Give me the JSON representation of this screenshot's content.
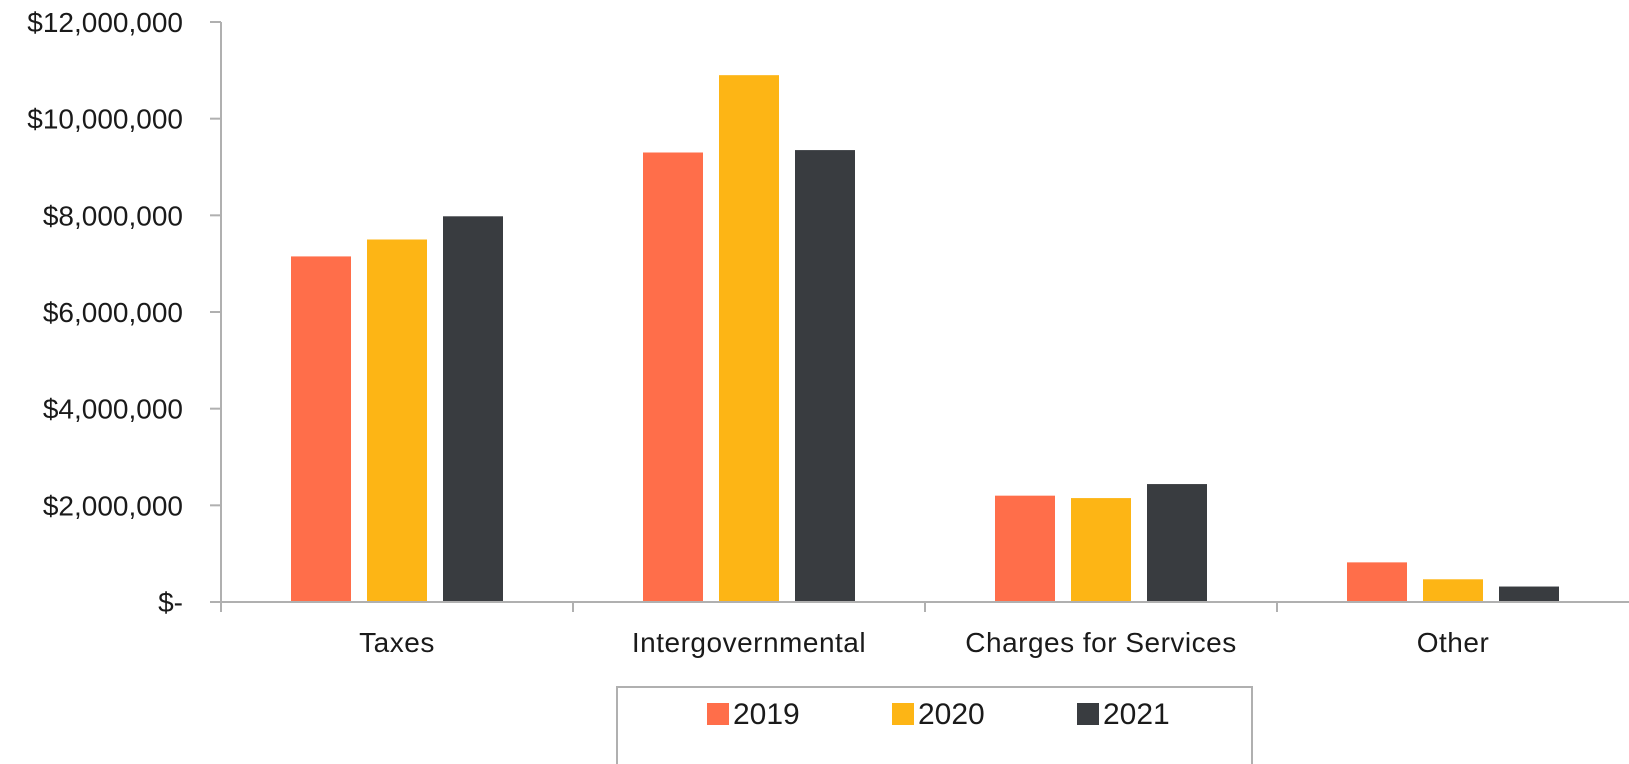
{
  "chart_data": {
    "type": "bar",
    "categories": [
      "Taxes",
      "Intergovernmental",
      "Charges for Services",
      "Other"
    ],
    "series": [
      {
        "name": "2019",
        "values": [
          7150000,
          9300000,
          2200000,
          820000
        ],
        "color": "#ff6e4a"
      },
      {
        "name": "2020",
        "values": [
          7500000,
          10900000,
          2150000,
          470000
        ],
        "color": "#fdb515"
      },
      {
        "name": "2021",
        "values": [
          7980000,
          9350000,
          2440000,
          320000
        ],
        "color": "#393c40"
      }
    ],
    "yticks": [
      {
        "value": 0,
        "label": "$-"
      },
      {
        "value": 2000000,
        "label": "$2,000,000"
      },
      {
        "value": 4000000,
        "label": "$4,000,000"
      },
      {
        "value": 6000000,
        "label": "$6,000,000"
      },
      {
        "value": 8000000,
        "label": "$8,000,000"
      },
      {
        "value": 10000000,
        "label": "$10,000,000"
      },
      {
        "value": 12000000,
        "label": "$12,000,000"
      }
    ],
    "ylim": [
      0,
      12000000
    ],
    "title": "",
    "xlabel": "",
    "ylabel": "",
    "grid": false,
    "legend_position": "bottom"
  }
}
